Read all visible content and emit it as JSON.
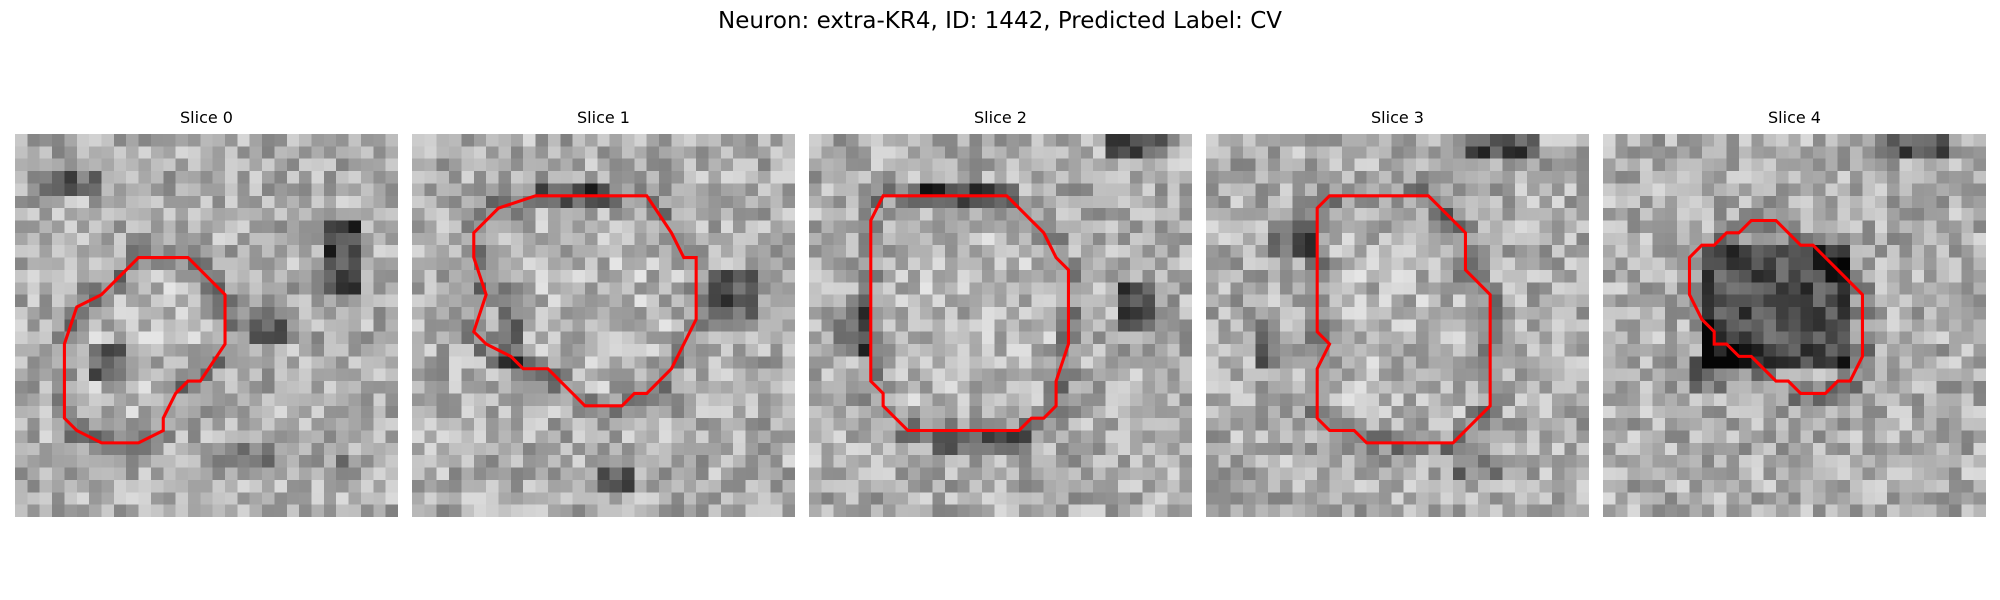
{
  "figure": {
    "title": "Neuron: extra-KR4, ID: 1442, Predicted Label: CV"
  },
  "colors": {
    "contour": "#ff0000",
    "cmap": "gray"
  },
  "panels": [
    {
      "title": "Slice 0",
      "contour": [
        [
          10,
          10
        ],
        [
          14,
          10
        ],
        [
          17,
          13
        ],
        [
          17,
          17
        ],
        [
          15,
          20
        ],
        [
          14,
          20
        ],
        [
          13,
          21
        ],
        [
          12,
          23
        ],
        [
          12,
          24
        ],
        [
          10,
          25
        ],
        [
          8,
          25
        ],
        [
          7,
          25
        ],
        [
          5,
          24
        ],
        [
          4,
          23
        ],
        [
          4,
          17
        ],
        [
          5,
          14
        ],
        [
          7,
          13
        ],
        [
          9,
          11
        ]
      ],
      "dark_blobs": [
        [
          2,
          3,
          5,
          2,
          0.7
        ],
        [
          6,
          17,
          3,
          3,
          0.8
        ],
        [
          19,
          14,
          3,
          3,
          0.7
        ],
        [
          25,
          7,
          3,
          6,
          1.0
        ],
        [
          26,
          26,
          2,
          2,
          0.5
        ],
        [
          15,
          25,
          6,
          2,
          0.4
        ]
      ]
    },
    {
      "title": "Slice 1",
      "contour": [
        [
          10,
          5
        ],
        [
          19,
          5
        ],
        [
          21,
          8
        ],
        [
          22,
          10
        ],
        [
          23,
          10
        ],
        [
          23,
          15
        ],
        [
          22,
          17
        ],
        [
          21,
          19
        ],
        [
          20,
          20
        ],
        [
          19,
          21
        ],
        [
          18,
          21
        ],
        [
          17,
          22
        ],
        [
          14,
          22
        ],
        [
          13,
          21
        ],
        [
          11,
          19
        ],
        [
          9,
          19
        ],
        [
          8,
          18
        ],
        [
          6,
          17
        ],
        [
          5,
          16
        ],
        [
          6,
          13
        ],
        [
          5,
          10
        ],
        [
          5,
          8
        ],
        [
          7,
          6
        ]
      ],
      "dark_blobs": [
        [
          15,
          27,
          3,
          2,
          0.9
        ],
        [
          24,
          11,
          4,
          4,
          0.8
        ],
        [
          10,
          4,
          6,
          2,
          0.6
        ],
        [
          7,
          12,
          2,
          7,
          0.6
        ]
      ]
    },
    {
      "title": "Slice 2",
      "contour": [
        [
          6,
          5
        ],
        [
          16,
          5
        ],
        [
          18,
          7
        ],
        [
          19,
          8
        ],
        [
          20,
          10
        ],
        [
          21,
          11
        ],
        [
          21,
          12
        ],
        [
          21,
          17
        ],
        [
          20,
          20
        ],
        [
          20,
          22
        ],
        [
          19,
          23
        ],
        [
          18,
          23
        ],
        [
          17,
          24
        ],
        [
          15,
          24
        ],
        [
          14,
          24
        ],
        [
          8,
          24
        ],
        [
          7,
          23
        ],
        [
          6,
          22
        ],
        [
          6,
          21
        ],
        [
          5,
          20
        ],
        [
          5,
          7
        ]
      ],
      "dark_blobs": [
        [
          25,
          12,
          3,
          4,
          0.9
        ],
        [
          24,
          0,
          5,
          2,
          0.8
        ],
        [
          2,
          14,
          3,
          4,
          0.6
        ],
        [
          9,
          4,
          8,
          2,
          0.7
        ],
        [
          10,
          24,
          8,
          2,
          0.6
        ]
      ]
    },
    {
      "title": "Slice 3",
      "contour": [
        [
          10,
          5
        ],
        [
          18,
          5
        ],
        [
          21,
          8
        ],
        [
          21,
          11
        ],
        [
          23,
          13
        ],
        [
          23,
          22
        ],
        [
          21,
          24
        ],
        [
          20,
          25
        ],
        [
          14,
          25
        ],
        [
          13,
          25
        ],
        [
          12,
          24
        ],
        [
          10,
          24
        ],
        [
          9,
          23
        ],
        [
          9,
          22
        ],
        [
          9,
          21
        ],
        [
          9,
          20
        ],
        [
          9,
          19
        ],
        [
          10,
          17
        ],
        [
          9,
          16
        ],
        [
          9,
          6
        ]
      ],
      "dark_blobs": [
        [
          21,
          0,
          6,
          2,
          0.9
        ],
        [
          4,
          15,
          2,
          4,
          0.6
        ],
        [
          5,
          7,
          4,
          3,
          0.6
        ],
        [
          20,
          26,
          4,
          2,
          0.5
        ]
      ]
    },
    {
      "title": "Slice 4",
      "contour": [
        [
          12,
          7
        ],
        [
          14,
          7
        ],
        [
          16,
          9
        ],
        [
          17,
          9
        ],
        [
          18,
          10
        ],
        [
          19,
          11
        ],
        [
          20,
          12
        ],
        [
          21,
          13
        ],
        [
          21,
          18
        ],
        [
          20,
          20
        ],
        [
          19,
          20
        ],
        [
          18,
          21
        ],
        [
          17,
          21
        ],
        [
          16,
          21
        ],
        [
          15,
          20
        ],
        [
          14,
          20
        ],
        [
          13,
          19
        ],
        [
          12,
          18
        ],
        [
          11,
          18
        ],
        [
          10,
          17
        ],
        [
          9,
          17
        ],
        [
          9,
          16
        ],
        [
          8,
          15
        ],
        [
          7,
          13
        ],
        [
          7,
          10
        ],
        [
          8,
          9
        ],
        [
          9,
          9
        ],
        [
          10,
          8
        ],
        [
          11,
          8
        ]
      ],
      "dark_blobs": [
        [
          8,
          9,
          12,
          10,
          1.0
        ],
        [
          22,
          0,
          6,
          2,
          0.8
        ],
        [
          7,
          18,
          3,
          3,
          0.6
        ]
      ]
    }
  ]
}
